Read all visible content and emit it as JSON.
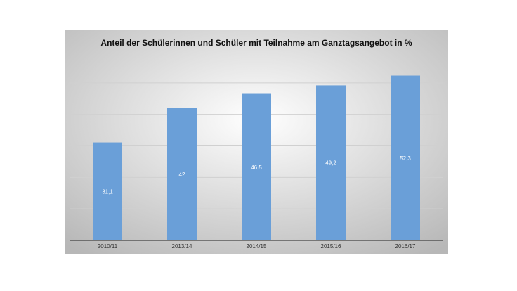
{
  "chart_data": {
    "type": "bar",
    "title": "Anteil der Schülerinnen und Schüler mit Teilnahme am Ganztagsangebot in %",
    "categories": [
      "2010/11",
      "2013/14",
      "2014/15",
      "2015/16",
      "2016/17"
    ],
    "values": [
      31.1,
      42,
      46.5,
      49.2,
      52.3
    ],
    "data_labels": [
      "31,1",
      "42",
      "46,5",
      "49,2",
      "52,3"
    ],
    "xlabel": "",
    "ylabel": "",
    "ylim": [
      0,
      60
    ],
    "gridlines": [
      10,
      20,
      30,
      40,
      50
    ],
    "grid": true,
    "legend": "none",
    "colors": {
      "bar": "#6a9fd8",
      "background_inner": "#ffffff",
      "background_outer": "#b7b7b7",
      "gridline": "#d0d0d0",
      "axis": "#222222"
    }
  }
}
